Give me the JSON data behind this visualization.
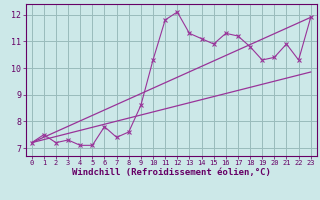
{
  "xlabel": "Windchill (Refroidissement éolien,°C)",
  "x_data": [
    0,
    1,
    2,
    3,
    4,
    5,
    6,
    7,
    8,
    9,
    10,
    11,
    12,
    13,
    14,
    15,
    16,
    17,
    18,
    19,
    20,
    21,
    22,
    23
  ],
  "y_scatter": [
    7.2,
    7.5,
    7.2,
    7.3,
    7.1,
    7.1,
    7.8,
    7.4,
    7.6,
    8.6,
    10.3,
    11.8,
    12.1,
    11.3,
    11.1,
    10.9,
    11.3,
    11.2,
    10.8,
    10.3,
    10.4,
    10.9,
    10.3,
    11.9
  ],
  "y_line1_x": [
    0,
    23
  ],
  "y_line1_y": [
    7.2,
    11.9
  ],
  "y_line2_x": [
    0,
    23
  ],
  "y_line2_y": [
    7.2,
    9.85
  ],
  "ylim": [
    6.7,
    12.4
  ],
  "xlim": [
    -0.5,
    23.5
  ],
  "yticks": [
    7,
    8,
    9,
    10,
    11,
    12
  ],
  "xticks": [
    0,
    1,
    2,
    3,
    4,
    5,
    6,
    7,
    8,
    9,
    10,
    11,
    12,
    13,
    14,
    15,
    16,
    17,
    18,
    19,
    20,
    21,
    22,
    23
  ],
  "line_color": "#993399",
  "bg_color": "#cce8e8",
  "grid_color": "#99bbbb",
  "label_color": "#660066",
  "tick_color": "#660066",
  "xlabel_fontsize": 6.5,
  "ytick_fontsize": 6.0,
  "xtick_fontsize": 5.0
}
